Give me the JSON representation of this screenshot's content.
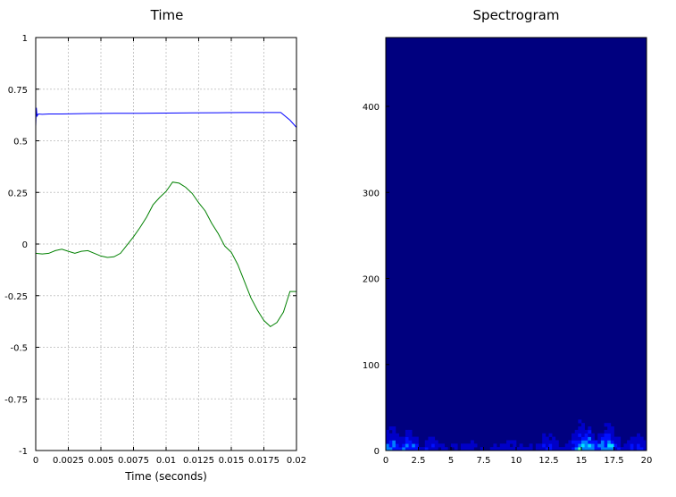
{
  "chart_data": [
    {
      "type": "line",
      "title": "Time",
      "xlabel": "Time (seconds)",
      "ylabel": "",
      "xlim": [
        0,
        0.02
      ],
      "ylim": [
        -1,
        1
      ],
      "grid": true,
      "x_ticks": [
        "0",
        "0.0025",
        "0.005",
        "0.0075",
        "0.01",
        "0.0125",
        "0.015",
        "0.0175",
        "0.02"
      ],
      "y_ticks": [
        "1",
        "0.75",
        "0.5",
        "0.25",
        "0",
        "-0.25",
        "-0.5",
        "-0.75",
        "-1"
      ],
      "series": [
        {
          "color": "#0000ff",
          "x": [
            0,
            5e-05,
            0.0001,
            0.0002,
            0.0005,
            0.001,
            0.002,
            0.004,
            0.006,
            0.008,
            0.01,
            0.012,
            0.014,
            0.016,
            0.0175,
            0.0188,
            0.0195,
            0.02
          ],
          "y": [
            0.57,
            0.66,
            0.62,
            0.63,
            0.628,
            0.63,
            0.63,
            0.632,
            0.633,
            0.633,
            0.634,
            0.635,
            0.636,
            0.637,
            0.637,
            0.637,
            0.6,
            0.565
          ]
        },
        {
          "color": "#008000",
          "x": [
            0,
            0.0005,
            0.001,
            0.0015,
            0.002,
            0.0025,
            0.003,
            0.0035,
            0.004,
            0.0045,
            0.005,
            0.0055,
            0.006,
            0.0065,
            0.007,
            0.0075,
            0.008,
            0.0085,
            0.009,
            0.0095,
            0.01,
            0.0105,
            0.011,
            0.0115,
            0.012,
            0.0125,
            0.013,
            0.0135,
            0.014,
            0.0145,
            0.015,
            0.0155,
            0.016,
            0.0165,
            0.017,
            0.0175,
            0.018,
            0.0185,
            0.019,
            0.0195,
            0.02
          ],
          "y": [
            -0.045,
            -0.048,
            -0.045,
            -0.032,
            -0.025,
            -0.035,
            -0.045,
            -0.035,
            -0.032,
            -0.045,
            -0.058,
            -0.065,
            -0.062,
            -0.045,
            -0.005,
            0.035,
            0.08,
            0.13,
            0.19,
            0.225,
            0.255,
            0.3,
            0.295,
            0.275,
            0.245,
            0.2,
            0.16,
            0.1,
            0.05,
            -0.01,
            -0.04,
            -0.1,
            -0.18,
            -0.26,
            -0.32,
            -0.37,
            -0.4,
            -0.38,
            -0.33,
            -0.23,
            -0.23
          ]
        }
      ]
    },
    {
      "type": "heatmap",
      "title": "Spectrogram",
      "xlim": [
        0,
        20
      ],
      "ylim": [
        0,
        480
      ],
      "x_ticks": [
        "0",
        "2.5",
        "5",
        "7.5",
        "10",
        "12.5",
        "15",
        "17.5",
        "20"
      ],
      "y_ticks": [
        "0",
        "100",
        "200",
        "300",
        "400"
      ],
      "background_color": "#00007f",
      "colormap": [
        "#00007f",
        "#0000c8",
        "#0010ff",
        "#0080ff",
        "#00e0ff",
        "#40ffb0",
        "#c0ff40"
      ],
      "x_bins": 80,
      "y_bin_height": 4,
      "peaks": [
        {
          "x": 0.4,
          "strength": 0.75
        },
        {
          "x": 1.8,
          "strength": 0.6
        },
        {
          "x": 3.5,
          "strength": 0.45
        },
        {
          "x": 6.5,
          "strength": 0.35
        },
        {
          "x": 9.5,
          "strength": 0.35
        },
        {
          "x": 12.5,
          "strength": 0.5
        },
        {
          "x": 15.2,
          "strength": 0.95
        },
        {
          "x": 17.0,
          "strength": 0.8
        },
        {
          "x": 19.2,
          "strength": 0.5
        }
      ]
    }
  ]
}
